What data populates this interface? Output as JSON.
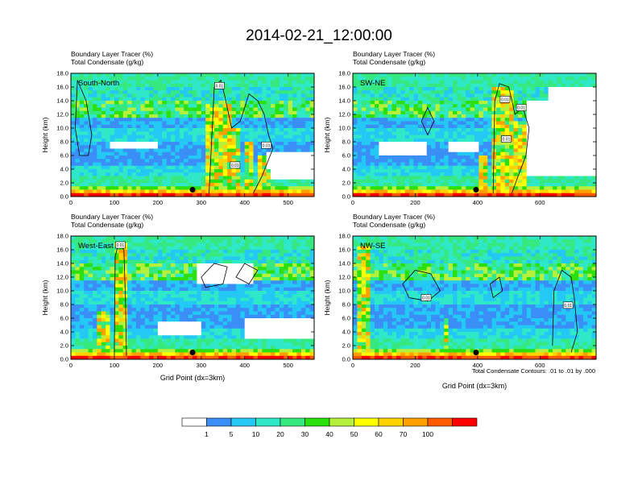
{
  "title": "2014-02-21_12:00:00",
  "palette": [
    "#ffffff",
    "#3a8ef6",
    "#24c8f4",
    "#2fe8c8",
    "#36e880",
    "#2ce010",
    "#b4f03c",
    "#ffff00",
    "#ffd200",
    "#ffa000",
    "#ff5a00",
    "#ff0000"
  ],
  "colorbar": {
    "labels": [
      "1",
      "5",
      "10",
      "20",
      "30",
      "40",
      "50",
      "60",
      "70",
      "100"
    ]
  },
  "footnote": "Total Condensate Contours: .01 to .01 by .000",
  "chart_data": [
    {
      "type": "heatmap",
      "panel": "South-North",
      "header_line1": "Boundary Layer Tracer    (%)",
      "header_line2": "Total Condensate    (g/kg)",
      "ylabel": "Height (km)",
      "xlabel": "",
      "xlim": [
        0,
        560
      ],
      "ylim": [
        0,
        18
      ],
      "xticks": [
        0,
        100,
        200,
        300,
        400,
        500
      ],
      "yticks": [
        0,
        2,
        4,
        6,
        8,
        10,
        12,
        14,
        16,
        18
      ],
      "ytick_labels": [
        "0.0",
        "2.0",
        "4.0",
        "6.0",
        "8.0",
        "10.0",
        "12.0",
        "14.0",
        "16.0",
        "18.0"
      ],
      "towers": [
        [
          312,
          368,
          13.5
        ],
        [
          368,
          392,
          10
        ],
        [
          400,
          420,
          8
        ],
        [
          430,
          470,
          6
        ]
      ],
      "white": [
        [
          462,
          560,
          2.5,
          4.5
        ],
        [
          448,
          560,
          4,
          6.5
        ],
        [
          90,
          200,
          6.8,
          8
        ]
      ],
      "contours": [
        [
          [
            15,
            17
          ],
          [
            35,
            14
          ],
          [
            48,
            9
          ],
          [
            40,
            6
          ],
          [
            20,
            6
          ],
          [
            10,
            10
          ],
          [
            15,
            17
          ]
        ],
        [
          [
            318,
            0.5
          ],
          [
            330,
            16
          ],
          [
            345,
            17
          ],
          [
            355,
            14.5
          ],
          [
            370,
            10
          ],
          [
            390,
            11
          ],
          [
            410,
            15
          ],
          [
            430,
            14
          ],
          [
            445,
            12
          ],
          [
            455,
            9
          ],
          [
            465,
            7
          ],
          [
            440,
            3
          ],
          [
            420,
            0.5
          ]
        ]
      ],
      "markers": [
        {
          "x": 280,
          "y": 1.0
        }
      ],
      "contour_labels": [
        {
          "x": 342,
          "y": 16.2,
          "text": "0.01"
        },
        {
          "x": 450,
          "y": 7.5,
          "text": "0.01"
        },
        {
          "x": 378,
          "y": 4.6,
          "text": "0.01"
        }
      ]
    },
    {
      "type": "heatmap",
      "panel": "SW-NE",
      "header_line1": "Boundary Layer Tracer    (%)",
      "header_line2": "Total Condensate    (g/kg)",
      "ylabel": "Height (km)",
      "xlabel": "",
      "xlim": [
        0,
        780
      ],
      "ylim": [
        0,
        18
      ],
      "xticks": [
        0,
        200,
        400,
        600
      ],
      "yticks": [
        0,
        2,
        4,
        6,
        8,
        10,
        12,
        14,
        16,
        18
      ],
      "ytick_labels": [
        "0.0",
        "2.0",
        "4.0",
        "6.0",
        "8.0",
        "10.0",
        "12.0",
        "14.0",
        "16.0",
        "18.0"
      ],
      "towers": [
        [
          440,
          520,
          16
        ],
        [
          520,
          560,
          11
        ],
        [
          400,
          430,
          6
        ]
      ],
      "white": [
        [
          560,
          780,
          3,
          14
        ],
        [
          620,
          780,
          13,
          16
        ],
        [
          90,
          240,
          6,
          8
        ],
        [
          300,
          400,
          6.5,
          8
        ]
      ],
      "contours": [
        [
          [
            450,
            0.5
          ],
          [
            455,
            14
          ],
          [
            470,
            16.5
          ],
          [
            500,
            16
          ],
          [
            520,
            12
          ],
          [
            545,
            13
          ],
          [
            565,
            10
          ],
          [
            555,
            6
          ],
          [
            530,
            3
          ],
          [
            510,
            0.5
          ]
        ],
        [
          [
            220,
            11
          ],
          [
            240,
            9
          ],
          [
            260,
            11
          ],
          [
            240,
            13
          ],
          [
            220,
            11
          ]
        ]
      ],
      "markers": [
        {
          "x": 395,
          "y": 1.0
        }
      ],
      "contour_labels": [
        {
          "x": 488,
          "y": 14.2,
          "text": "0.01"
        },
        {
          "x": 540,
          "y": 13.0,
          "text": "0.01"
        },
        {
          "x": 492,
          "y": 8.4,
          "text": "0.01"
        }
      ]
    },
    {
      "type": "heatmap",
      "panel": "West-East",
      "header_line1": "Boundary Layer Tracer    (%)",
      "header_line2": "Total Condensate    (g/kg)",
      "ylabel": "Height (km)",
      "xlabel": "Grid Point  (dx=3km)",
      "xlim": [
        0,
        560
      ],
      "ylim": [
        0,
        18
      ],
      "xticks": [
        0,
        100,
        200,
        300,
        400,
        500
      ],
      "yticks": [
        0,
        2,
        4,
        6,
        8,
        10,
        12,
        14,
        16,
        18
      ],
      "ytick_labels": [
        "0.0",
        "2.0",
        "4.0",
        "6.0",
        "8.0",
        "10.0",
        "12.0",
        "14.0",
        "16.0",
        "18.0"
      ],
      "towers": [
        [
          98,
          128,
          17
        ],
        [
          60,
          90,
          7
        ]
      ],
      "white": [
        [
          290,
          420,
          11,
          14
        ],
        [
          200,
          300,
          3.5,
          5.5
        ],
        [
          400,
          560,
          3,
          6
        ]
      ],
      "contours": [
        [
          [
            100,
            0.5
          ],
          [
            102,
            15
          ],
          [
            110,
            17
          ],
          [
            122,
            16
          ],
          [
            126,
            8
          ],
          [
            128,
            0.5
          ]
        ],
        [
          [
            300,
            12
          ],
          [
            330,
            14
          ],
          [
            360,
            13.5
          ],
          [
            350,
            11
          ],
          [
            310,
            10.5
          ],
          [
            300,
            12
          ]
        ],
        [
          [
            380,
            12
          ],
          [
            400,
            14
          ],
          [
            430,
            13
          ],
          [
            410,
            11
          ],
          [
            380,
            12
          ]
        ]
      ],
      "markers": [
        {
          "x": 280,
          "y": 1.0
        }
      ],
      "contour_labels": [
        {
          "x": 114,
          "y": 16.7,
          "text": "0.01"
        }
      ]
    },
    {
      "type": "heatmap",
      "panel": "NW-SE",
      "header_line1": "Boundary Layer Tracer    (%)",
      "header_line2": "Total Condensate    (g/kg)",
      "ylabel": "Height (km)",
      "xlabel": "Grid Point  (dx=3km)",
      "xlim": [
        0,
        780
      ],
      "ylim": [
        0,
        18
      ],
      "xticks": [
        0,
        200,
        400,
        600
      ],
      "yticks": [
        0,
        2,
        4,
        6,
        8,
        10,
        12,
        14,
        16,
        18
      ],
      "ytick_labels": [
        "0.0",
        "2.0",
        "4.0",
        "6.0",
        "8.0",
        "10.0",
        "12.0",
        "14.0",
        "16.0",
        "18.0"
      ],
      "towers": [
        [
          20,
          50,
          17
        ],
        [
          290,
          300,
          6
        ]
      ],
      "white": [],
      "contours": [
        [
          [
            160,
            11
          ],
          [
            200,
            13
          ],
          [
            250,
            12.5
          ],
          [
            280,
            10
          ],
          [
            240,
            8.5
          ],
          [
            180,
            9
          ],
          [
            160,
            11
          ]
        ],
        [
          [
            440,
            11
          ],
          [
            470,
            12
          ],
          [
            480,
            10
          ],
          [
            450,
            9
          ],
          [
            440,
            11
          ]
        ],
        [
          [
            640,
            2
          ],
          [
            645,
            10
          ],
          [
            670,
            13
          ],
          [
            700,
            12
          ],
          [
            710,
            9
          ],
          [
            720,
            4
          ],
          [
            700,
            1
          ]
        ]
      ],
      "markers": [
        {
          "x": 395,
          "y": 1.0
        }
      ],
      "contour_labels": [
        {
          "x": 235,
          "y": 9.0,
          "text": "0.01"
        },
        {
          "x": 690,
          "y": 7.9,
          "text": "0.01"
        }
      ]
    }
  ]
}
